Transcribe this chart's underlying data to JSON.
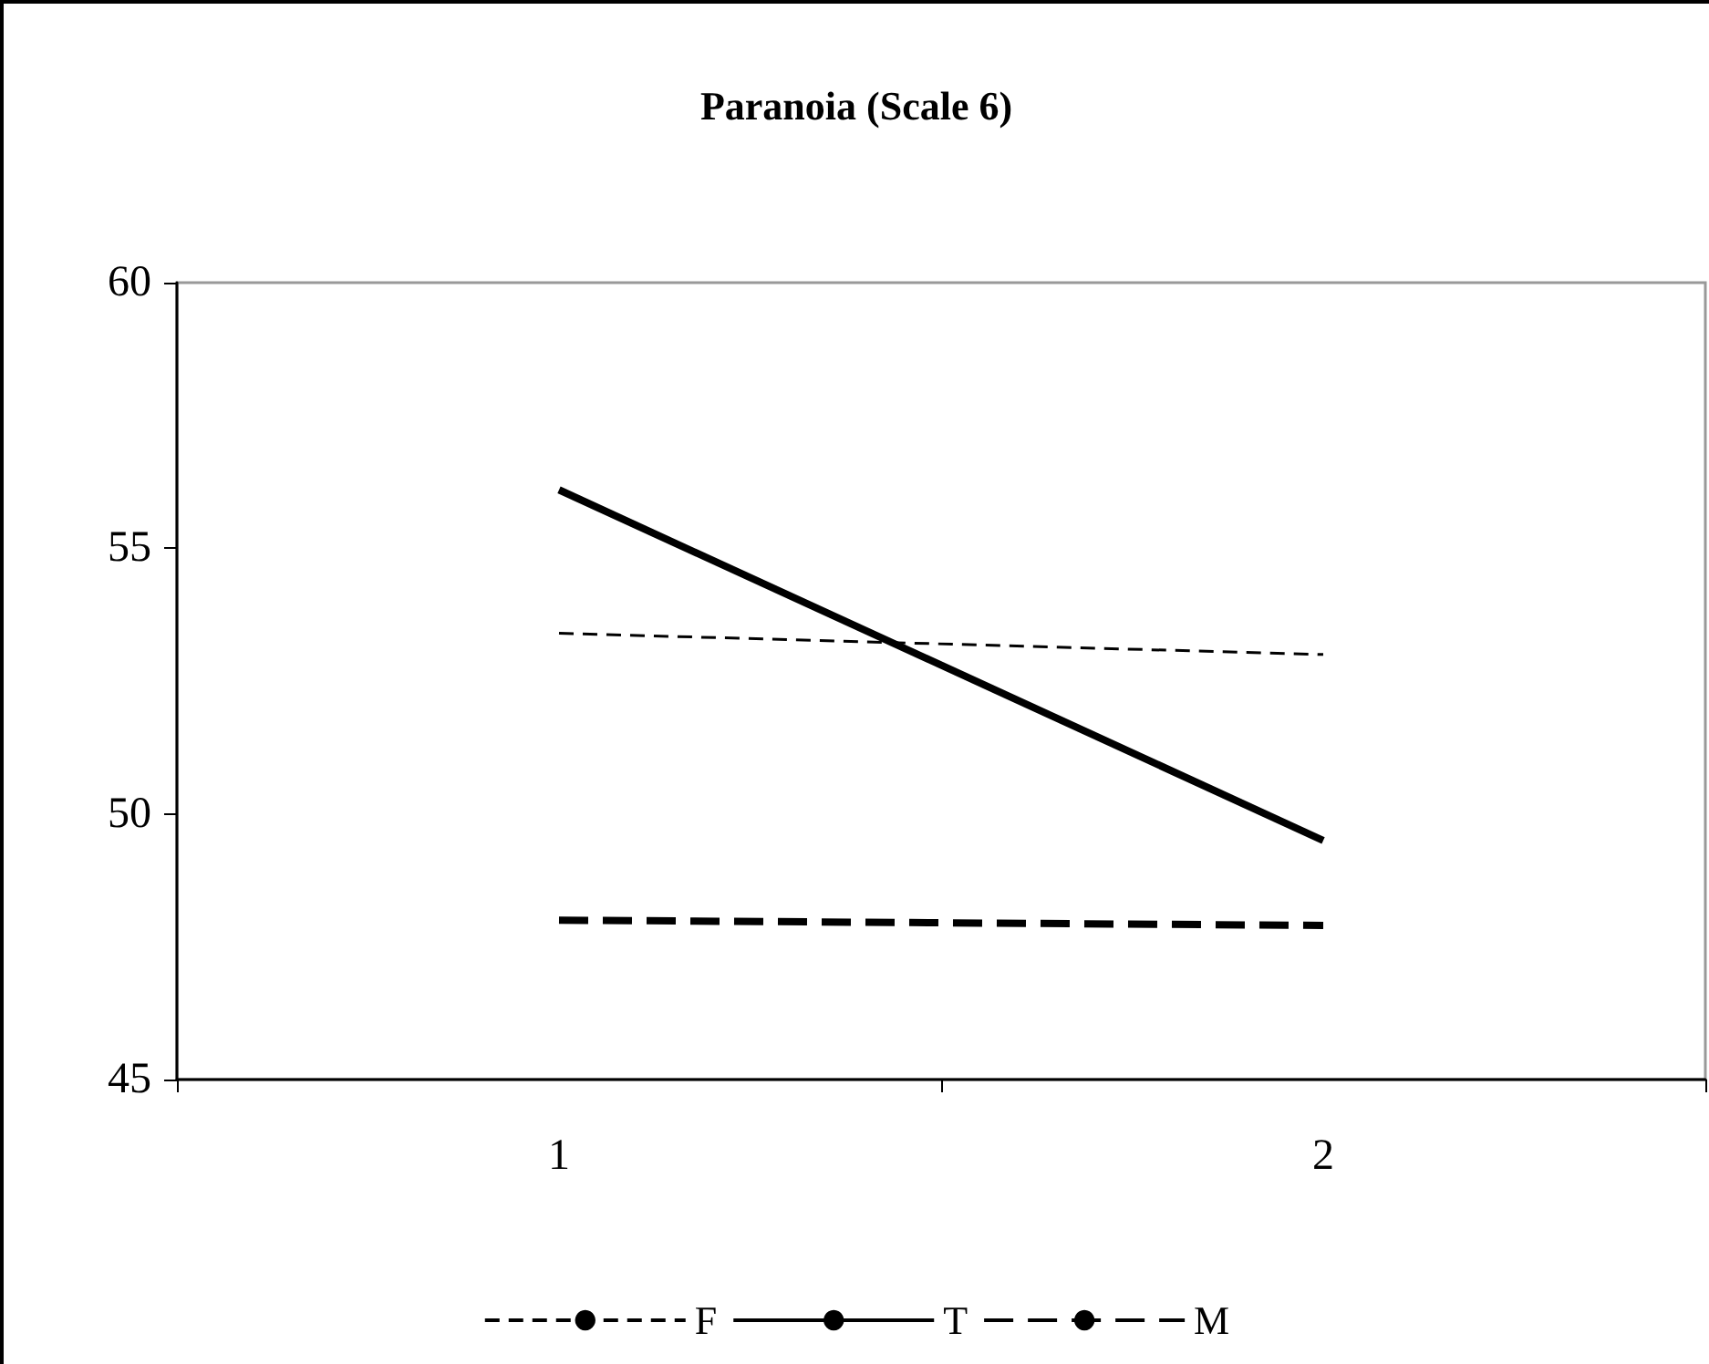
{
  "chart_data": {
    "type": "line",
    "title": "Paranoia (Scale 6)",
    "categories": [
      "1",
      "2"
    ],
    "series": [
      {
        "name": "F",
        "color": "#000000",
        "values": [
          53.4,
          53.0
        ],
        "line_style": "dashed"
      },
      {
        "name": "T",
        "color": "#000000",
        "values": [
          56.1,
          49.5
        ],
        "line_style": "solid"
      },
      {
        "name": "M",
        "color": "#000000",
        "values": [
          48.0,
          47.9
        ],
        "line_style": "dashed"
      }
    ],
    "ylim": [
      45,
      60
    ],
    "yticks": [
      45,
      50,
      55,
      60
    ],
    "grid": false,
    "legend": "bottom",
    "marker": "none"
  }
}
